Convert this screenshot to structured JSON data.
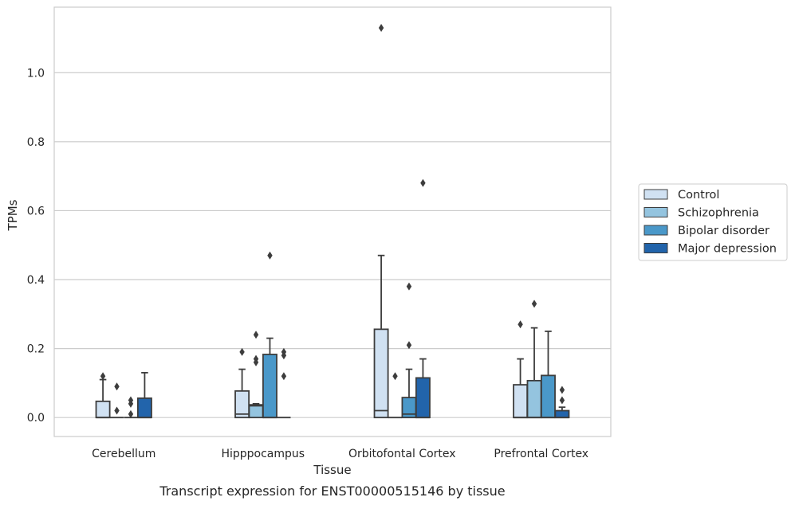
{
  "chart_data": {
    "type": "boxplot",
    "title": "",
    "caption": "Transcript expression for ENST00000515146 by tissue",
    "xlabel": "Tissue",
    "ylabel": "TPMs",
    "ylim": [
      -0.055,
      1.19
    ],
    "yticks": [
      0.0,
      0.2,
      0.4,
      0.6,
      0.8,
      1.0
    ],
    "ytick_labels": [
      "0.0",
      "0.2",
      "0.4",
      "0.6",
      "0.8",
      "1.0"
    ],
    "grid": "horizontal",
    "legend_position": "right",
    "categories": [
      "Cerebellum",
      "Hipppocampus",
      "Orbitofontal Cortex",
      "Prefrontal Cortex"
    ],
    "series": [
      {
        "name": "Control",
        "color": "#d0e1f2",
        "boxes": [
          {
            "q1": 0.0,
            "median": 0.0,
            "q3": 0.047,
            "whisker_low": 0.0,
            "whisker_high": 0.11,
            "outliers": [
              0.12
            ]
          },
          {
            "q1": 0.0,
            "median": 0.01,
            "q3": 0.077,
            "whisker_low": 0.0,
            "whisker_high": 0.14,
            "outliers": [
              0.19
            ]
          },
          {
            "q1": 0.0,
            "median": 0.02,
            "q3": 0.256,
            "whisker_low": 0.0,
            "whisker_high": 0.47,
            "outliers": [
              1.13
            ]
          },
          {
            "q1": 0.0,
            "median": 0.0,
            "q3": 0.095,
            "whisker_low": 0.0,
            "whisker_high": 0.17,
            "outliers": [
              0.27
            ]
          }
        ]
      },
      {
        "name": "Schizophrenia",
        "color": "#94c4df",
        "boxes": [
          {
            "q1": 0.0,
            "median": 0.0,
            "q3": 0.0,
            "whisker_low": 0.0,
            "whisker_high": 0.0,
            "outliers": [
              0.02,
              0.09
            ]
          },
          {
            "q1": 0.0,
            "median": 0.034,
            "q3": 0.037,
            "whisker_low": 0.0,
            "whisker_high": 0.04,
            "outliers": [
              0.16,
              0.17,
              0.24
            ]
          },
          {
            "q1": 0.0,
            "median": 0.0,
            "q3": 0.0,
            "whisker_low": 0.0,
            "whisker_high": 0.0,
            "outliers": [
              0.12
            ]
          },
          {
            "q1": 0.0,
            "median": 0.0,
            "q3": 0.107,
            "whisker_low": 0.0,
            "whisker_high": 0.26,
            "outliers": [
              0.33
            ]
          }
        ]
      },
      {
        "name": "Bipolar disorder",
        "color": "#4a98c9",
        "boxes": [
          {
            "q1": 0.0,
            "median": 0.0,
            "q3": 0.0,
            "whisker_low": 0.0,
            "whisker_high": 0.0,
            "outliers": [
              0.01,
              0.04,
              0.05
            ]
          },
          {
            "q1": 0.0,
            "median": 0.0,
            "q3": 0.183,
            "whisker_low": 0.0,
            "whisker_high": 0.23,
            "outliers": [
              0.47
            ]
          },
          {
            "q1": 0.0,
            "median": 0.01,
            "q3": 0.058,
            "whisker_low": 0.0,
            "whisker_high": 0.14,
            "outliers": [
              0.21,
              0.38
            ]
          },
          {
            "q1": 0.0,
            "median": 0.0,
            "q3": 0.122,
            "whisker_low": 0.0,
            "whisker_high": 0.25,
            "outliers": []
          }
        ]
      },
      {
        "name": "Major depression",
        "color": "#2264ab",
        "boxes": [
          {
            "q1": 0.0,
            "median": 0.0,
            "q3": 0.056,
            "whisker_low": 0.0,
            "whisker_high": 0.13,
            "outliers": []
          },
          {
            "q1": 0.0,
            "median": 0.0,
            "q3": 0.0,
            "whisker_low": 0.0,
            "whisker_high": 0.0,
            "outliers": [
              0.12,
              0.18,
              0.19
            ]
          },
          {
            "q1": 0.0,
            "median": 0.0,
            "q3": 0.115,
            "whisker_low": 0.0,
            "whisker_high": 0.17,
            "outliers": [
              0.68
            ]
          },
          {
            "q1": 0.0,
            "median": 0.0,
            "q3": 0.02,
            "whisker_low": 0.0,
            "whisker_high": 0.03,
            "outliers": [
              0.05,
              0.08
            ]
          }
        ]
      }
    ]
  }
}
